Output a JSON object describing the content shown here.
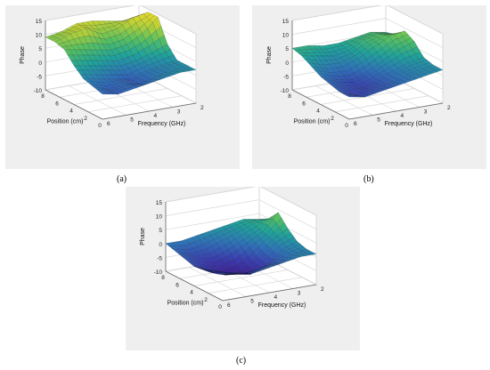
{
  "colors": {
    "panel_bg": "#efefef",
    "axis": "#6a6a6a",
    "grid": "#d8d8d8",
    "colormap": [
      "#3d1f8f",
      "#3a3fb0",
      "#2e73b8",
      "#1fa39b",
      "#56bf62",
      "#b6cf39",
      "#f2dc28"
    ]
  },
  "chart_data": [
    {
      "type": "surface",
      "caption": "(a)",
      "zlabel": "Phase",
      "xlabel": "Position (cm)",
      "ylabel": "Frequency (GHz)",
      "zticks": [
        "15",
        "10",
        "5",
        "0",
        "-5",
        "-10"
      ],
      "zlim": [
        -10,
        15
      ],
      "xticks": [
        "8",
        "6",
        "4",
        "2",
        "0"
      ],
      "xlim": [
        0,
        8
      ],
      "yticks": [
        "6",
        "5",
        "4",
        "3",
        "2"
      ],
      "ylim": [
        2,
        6
      ],
      "grid": true,
      "surface": [
        [
          9,
          10,
          12,
          12,
          11,
          10,
          11
        ],
        [
          9,
          11,
          12,
          9,
          10,
          13,
          14
        ],
        [
          8,
          7,
          6,
          5,
          6,
          9,
          14
        ],
        [
          4,
          3,
          2,
          1,
          2,
          4,
          6
        ],
        [
          1,
          0,
          -1,
          -2,
          0,
          1,
          2
        ],
        [
          0,
          -2,
          -1,
          -2,
          0,
          1,
          2
        ],
        [
          -1,
          -2,
          -1,
          0,
          1,
          2,
          2
        ]
      ]
    },
    {
      "type": "surface",
      "caption": "(b)",
      "zlabel": "Phase",
      "xlabel": "Position (cm)",
      "ylabel": "Frequency (GHz)",
      "zticks": [
        "15",
        "10",
        "5",
        "0",
        "-5",
        "-10"
      ],
      "zlim": [
        -10,
        15
      ],
      "xticks": [
        "8",
        "6",
        "4",
        "2",
        "0"
      ],
      "xlim": [
        0,
        8
      ],
      "yticks": [
        "6",
        "5",
        "4",
        "3",
        "2"
      ],
      "ylim": [
        2,
        6
      ],
      "grid": true,
      "surface": [
        [
          5,
          5,
          4,
          4,
          5,
          6,
          5
        ],
        [
          4,
          3,
          2,
          3,
          6,
          7,
          6
        ],
        [
          2,
          0,
          0,
          2,
          5,
          8,
          9
        ],
        [
          0,
          -2,
          -3,
          -1,
          2,
          5,
          7
        ],
        [
          -1,
          -3,
          -4,
          -2,
          0,
          2,
          3
        ],
        [
          -2,
          -4,
          -3,
          -2,
          0,
          1,
          2
        ],
        [
          -2,
          -3,
          -2,
          -1,
          0,
          1,
          2
        ]
      ]
    },
    {
      "type": "surface",
      "caption": "(c)",
      "zlabel": "Phase",
      "xlabel": "Position (cm)",
      "ylabel": "Frequency (GHz)",
      "zticks": [
        "15",
        "10",
        "5",
        "0",
        "-5",
        "-10"
      ],
      "zlim": [
        -10,
        15
      ],
      "xticks": [
        "8",
        "6",
        "4",
        "2",
        "0"
      ],
      "xlim": [
        0,
        8
      ],
      "yticks": [
        "6",
        "5",
        "4",
        "3",
        "2"
      ],
      "ylim": [
        2,
        6
      ],
      "grid": true,
      "surface": [
        [
          0,
          0,
          1,
          2,
          3,
          4,
          3
        ],
        [
          -1,
          -3,
          -2,
          0,
          2,
          4,
          5
        ],
        [
          -2,
          -4,
          -5,
          -3,
          0,
          3,
          9
        ],
        [
          -3,
          -6,
          -8,
          -7,
          -3,
          2,
          5
        ],
        [
          -2,
          -5,
          -6,
          -7,
          -4,
          0,
          2
        ],
        [
          -1,
          -3,
          -4,
          -3,
          -2,
          0,
          1
        ],
        [
          0,
          -1,
          -2,
          -1,
          0,
          1,
          1
        ]
      ]
    }
  ]
}
